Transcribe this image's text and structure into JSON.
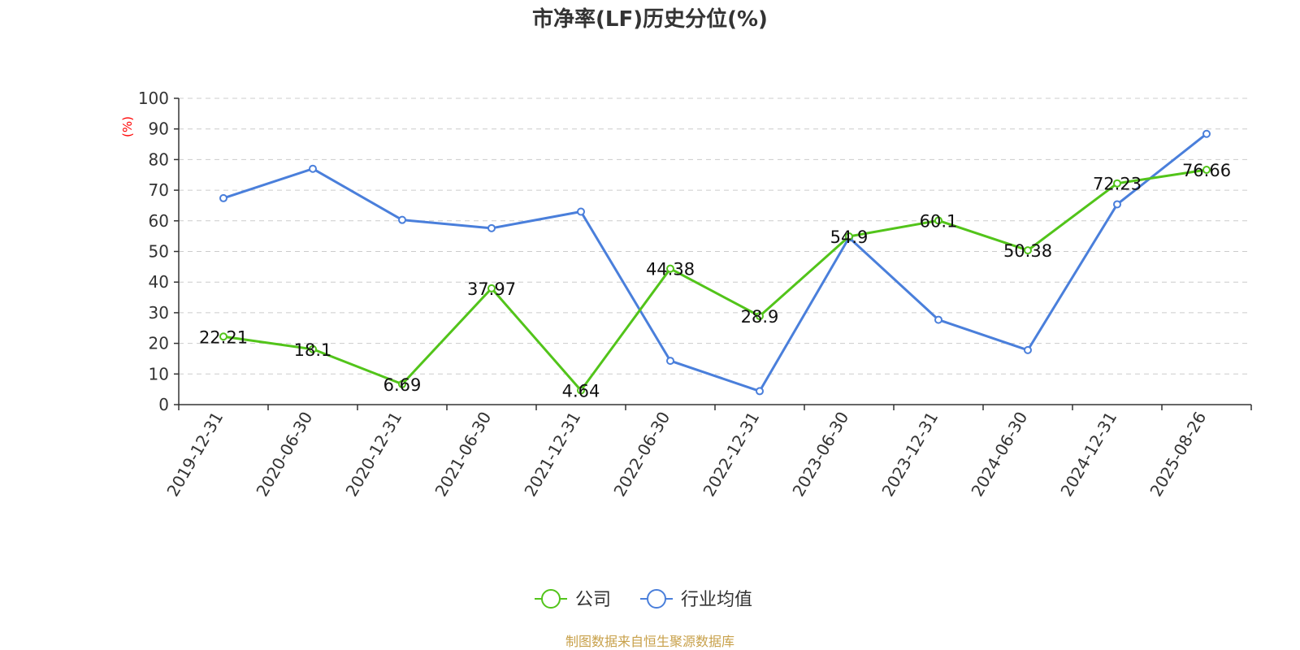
{
  "chart_data": {
    "type": "line",
    "title": "市净率(LF)历史分位(%)",
    "ylabel": "(%)",
    "ylim": [
      0,
      100
    ],
    "yticks": [
      0,
      10,
      20,
      30,
      40,
      50,
      60,
      70,
      80,
      90,
      100
    ],
    "categories": [
      "2019-12-31",
      "2020-06-30",
      "2020-12-31",
      "2021-06-30",
      "2021-12-31",
      "2022-06-30",
      "2022-12-31",
      "2023-06-30",
      "2023-12-31",
      "2024-06-30",
      "2024-12-31",
      "2025-08-26"
    ],
    "series": [
      {
        "name": "公司",
        "color": "#52c41a",
        "values": [
          22.21,
          18.1,
          6.69,
          37.97,
          4.64,
          44.38,
          28.9,
          54.9,
          60.1,
          50.38,
          72.23,
          76.66
        ],
        "data_labels": [
          "22.21",
          "18.1",
          "6.69",
          "37.97",
          "4.64",
          "44.38",
          "28.9",
          "54.9",
          "60.1",
          "50.38",
          "72.23",
          "76.66"
        ]
      },
      {
        "name": "行业均值",
        "color": "#4a7fdb",
        "values": [
          67.4,
          77.0,
          60.3,
          57.6,
          63.0,
          14.3,
          4.4,
          54.5,
          27.7,
          17.8,
          65.4,
          88.4
        ]
      }
    ],
    "grid": true,
    "legend_position": "bottom-center",
    "ylabel_color": "#ff0000"
  },
  "footer": {
    "source": "制图数据来自恒生聚源数据库",
    "source_color": "#c8a14b"
  }
}
